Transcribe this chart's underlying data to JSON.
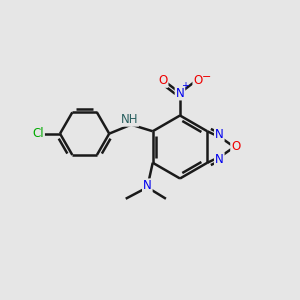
{
  "bg_color": "#e6e6e6",
  "bond_color": "#1a1a1a",
  "bond_width": 1.8,
  "dbo": 0.12,
  "atom_colors": {
    "C": "#1a1a1a",
    "N": "#0000ee",
    "O": "#ee0000",
    "Cl": "#00aa00",
    "H": "#2a6060"
  },
  "fs": 8.5,
  "fs_small": 7.0
}
